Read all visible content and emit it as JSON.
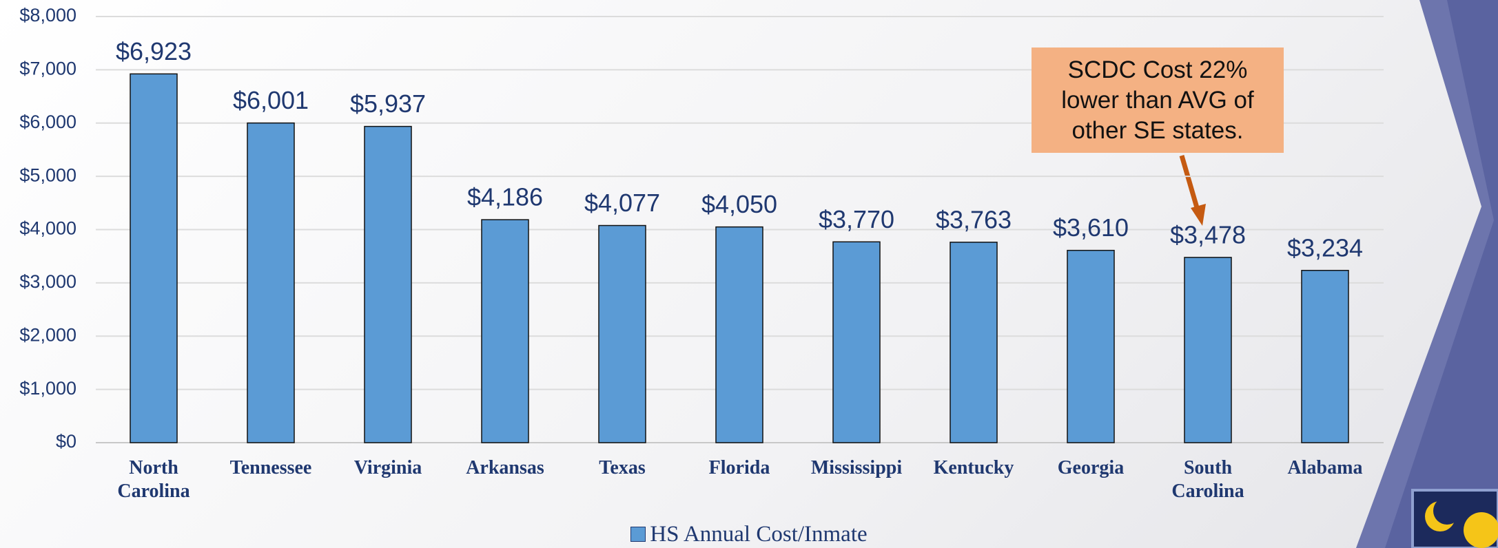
{
  "chart_data": {
    "type": "bar",
    "categories": [
      "North Carolina",
      "Tennessee",
      "Virginia",
      "Arkansas",
      "Texas",
      "Florida",
      "Mississippi",
      "Kentucky",
      "Georgia",
      "South Carolina",
      "Alabama"
    ],
    "series": [
      {
        "name": "HS Annual Cost/Inmate",
        "color": "#5b9bd5",
        "values": [
          6923,
          6001,
          5937,
          4186,
          4077,
          4050,
          3770,
          3763,
          3610,
          3478,
          3234
        ],
        "value_labels": [
          "$6,923",
          "$6,001",
          "$5,937",
          "$4,186",
          "$4,077",
          "$4,050",
          "$3,770",
          "$3,763",
          "$3,610",
          "$3,478",
          "$3,234"
        ]
      }
    ],
    "ylim": [
      0,
      8000
    ],
    "yticks": [
      {
        "value": 0,
        "label": "$0"
      },
      {
        "value": 1000,
        "label": "$1,000"
      },
      {
        "value": 2000,
        "label": "$2,000"
      },
      {
        "value": 3000,
        "label": "$3,000"
      },
      {
        "value": 4000,
        "label": "$4,000"
      },
      {
        "value": 5000,
        "label": "$5,000"
      },
      {
        "value": 6000,
        "label": "$6,000"
      },
      {
        "value": 7000,
        "label": "$7,000"
      },
      {
        "value": 8000,
        "label": "$8,000"
      }
    ],
    "grid": true,
    "legend": "bottom",
    "annotation": "SCDC Cost 22% lower than AVG of other SE states."
  }
}
